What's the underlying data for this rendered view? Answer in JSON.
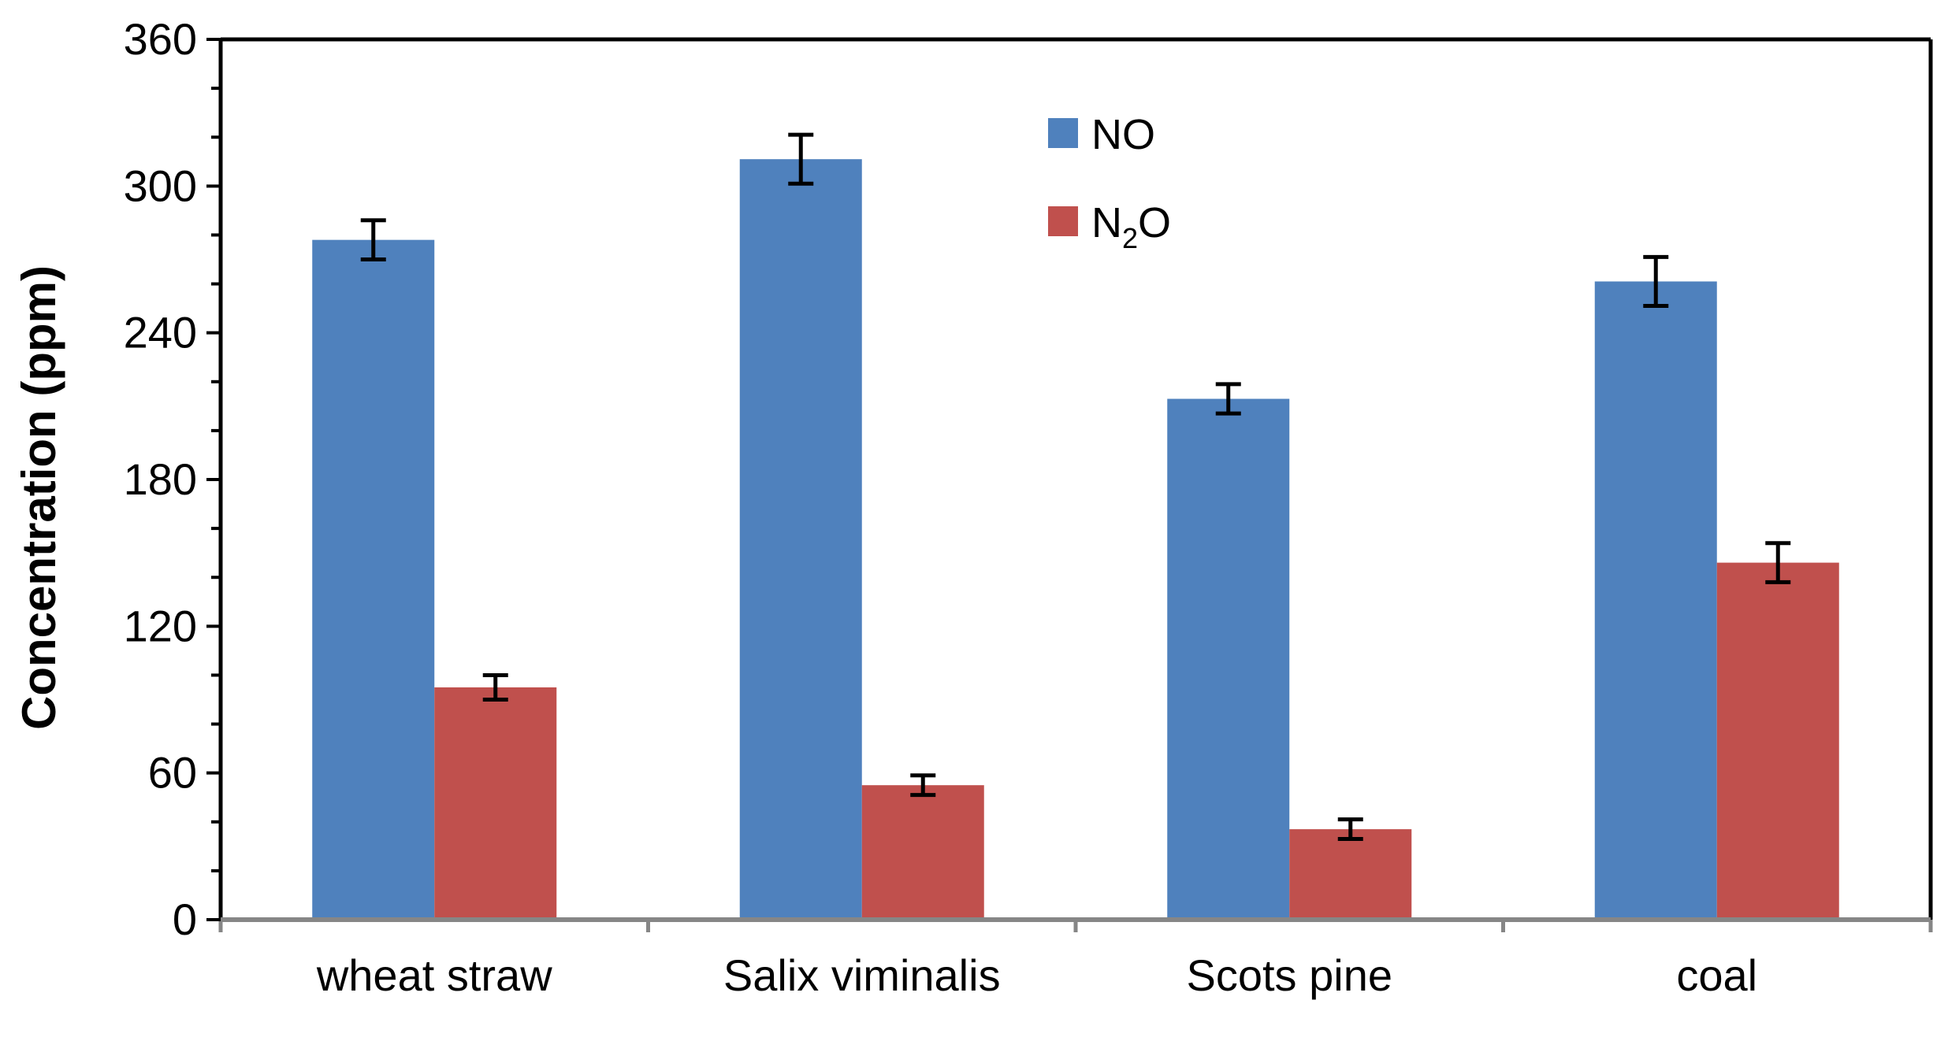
{
  "chart_data": {
    "type": "bar",
    "title": "",
    "xlabel": "",
    "ylabel": "Concentration (ppm)",
    "ylim": [
      0,
      360
    ],
    "yticks": [
      0,
      60,
      120,
      180,
      240,
      300,
      360
    ],
    "grid": false,
    "legend_position": "top-center",
    "categories": [
      "wheat straw",
      "Salix viminalis",
      "Scots pine",
      "coal"
    ],
    "series": [
      {
        "name": "NO",
        "color": "#4F81BD",
        "values": [
          278,
          311,
          213,
          261
        ],
        "errors": [
          8,
          10,
          6,
          10
        ]
      },
      {
        "name": "N2O",
        "label_main": "N",
        "label_sub": "2",
        "label_tail": "O",
        "color": "#C0504D",
        "values": [
          95,
          55,
          37,
          146
        ],
        "errors": [
          5,
          4,
          4,
          8
        ]
      }
    ],
    "error_bar_color": "#000000"
  }
}
